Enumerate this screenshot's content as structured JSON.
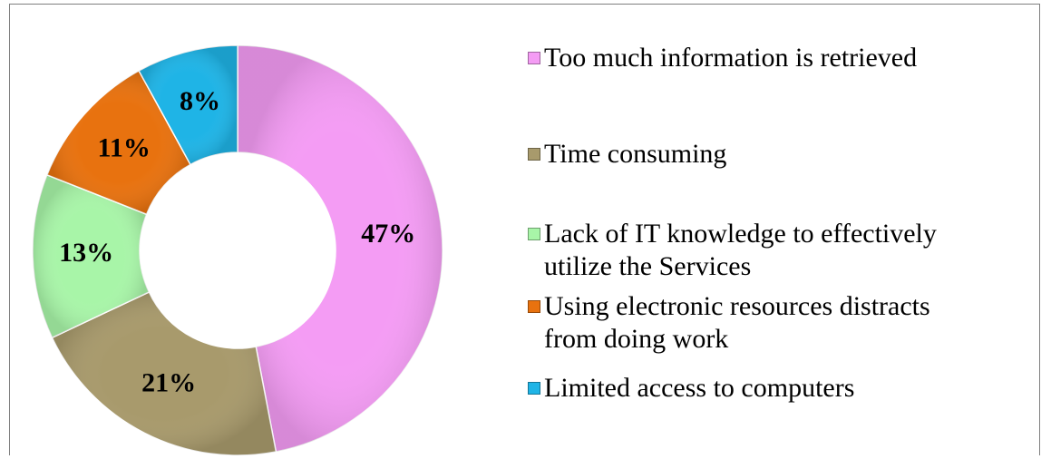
{
  "chart_data": {
    "type": "pie",
    "variant": "donut",
    "categories": [
      "Too much information is retrieved",
      "Time consuming",
      "Lack of IT knowledge to effectively utilize the Services",
      "Using electronic resources distracts from doing work",
      "Limited access to computers"
    ],
    "values": [
      47,
      21,
      13,
      11,
      8
    ],
    "value_labels": [
      "47%",
      "21%",
      "13%",
      "11%",
      "8%"
    ],
    "colors": [
      "#f49cf4",
      "#a89a6c",
      "#a8f5a8",
      "#e8720f",
      "#1fb4e6"
    ],
    "legend_placement": "right",
    "title": ""
  }
}
